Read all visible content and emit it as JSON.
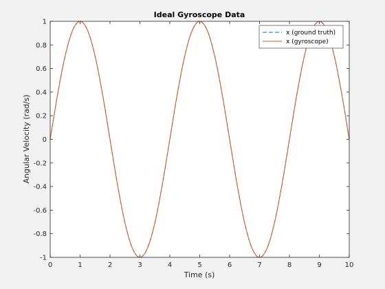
{
  "chart_data": {
    "type": "line",
    "title": "Ideal Gyroscope Data",
    "xlabel": "Time (s)",
    "ylabel": "Angular Velocity (rad/s)",
    "xlim": [
      0,
      10
    ],
    "ylim": [
      -1,
      1
    ],
    "xticks": [
      0,
      1,
      2,
      3,
      4,
      5,
      6,
      7,
      8,
      9,
      10
    ],
    "yticks": [
      -1,
      -0.8,
      -0.6,
      -0.4,
      -0.2,
      0,
      0.2,
      0.4,
      0.6,
      0.8,
      1
    ],
    "x": [
      0,
      0.25,
      0.5,
      0.75,
      1,
      1.25,
      1.5,
      1.75,
      2,
      2.25,
      2.5,
      2.75,
      3,
      3.25,
      3.5,
      3.75,
      4,
      4.25,
      4.5,
      4.75,
      5,
      5.25,
      5.5,
      5.75,
      6,
      6.25,
      6.5,
      6.75,
      7,
      7.25,
      7.5,
      7.75,
      8,
      8.25,
      8.5,
      8.75,
      9,
      9.25,
      9.5,
      9.75,
      10
    ],
    "series": [
      {
        "name": "x (ground truth)",
        "color": "#0072bd",
        "style": "dashed",
        "values": [
          0,
          0.383,
          0.707,
          0.924,
          1,
          0.924,
          0.707,
          0.383,
          0,
          -0.383,
          -0.707,
          -0.924,
          -1,
          -0.924,
          -0.707,
          -0.383,
          0,
          0.383,
          0.707,
          0.924,
          1,
          0.924,
          0.707,
          0.383,
          0,
          -0.383,
          -0.707,
          -0.924,
          -1,
          -0.924,
          -0.707,
          -0.383,
          0,
          0.383,
          0.707,
          0.924,
          1,
          0.924,
          0.707,
          0.383,
          0
        ]
      },
      {
        "name": "x (gyroscope)",
        "color": "#d95319",
        "style": "solid",
        "values": [
          0,
          0.383,
          0.707,
          0.924,
          1,
          0.924,
          0.707,
          0.383,
          0,
          -0.383,
          -0.707,
          -0.924,
          -1,
          -0.924,
          -0.707,
          -0.383,
          0,
          0.383,
          0.707,
          0.924,
          1,
          0.924,
          0.707,
          0.383,
          0,
          -0.383,
          -0.707,
          -0.924,
          -1,
          -0.924,
          -0.707,
          -0.383,
          0,
          0.383,
          0.707,
          0.924,
          1,
          0.924,
          0.707,
          0.383,
          0
        ]
      }
    ],
    "legend": {
      "position": "top-right"
    },
    "grid": false,
    "colors": {
      "figure_background": "#f2f2f2",
      "axes_background": "#ffffff",
      "axis": "#262626"
    }
  }
}
